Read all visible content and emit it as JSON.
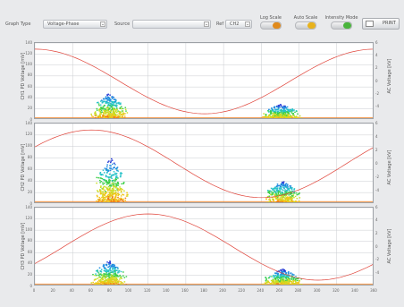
{
  "toolbar": {
    "graph_type_label": "Graph Type",
    "graph_type_value": "Voltage-Phase",
    "source_label": "Source",
    "source_value": "",
    "ref_label": "Ref",
    "ref_value": "CH2",
    "log_scale_label": "Log Scale",
    "auto_scale_label": "Auto Scale",
    "intensity_mode_label": "Intensity Mode",
    "print_label": "PRINT"
  },
  "colors": {
    "sine": "#e0443a",
    "grid": "#c9ccd0",
    "log_scale_knob": "#e08a1c",
    "auto_scale_knob": "#e8b21c",
    "intensity_knob": "#49b43c"
  },
  "chart_data": [
    {
      "type": "heatmap",
      "ylabel": "CH1 PD Voltage [mV]",
      "y2label": "AC Voltage [kV]",
      "xlabel": "",
      "x_ticks": [],
      "y_ticks": [
        "140",
        "120",
        "100",
        "80",
        "60",
        "40",
        "20",
        "0"
      ],
      "y2_ticks": [
        "6",
        "4",
        "2",
        "0",
        "-2",
        "-4"
      ],
      "xlim": [
        0,
        360
      ],
      "ylim": [
        0,
        140
      ],
      "clusters": [
        {
          "x_center": 78,
          "x_width": 22,
          "peak_mV": 48
        },
        {
          "x_center": 260,
          "x_width": 24,
          "peak_mV": 28
        }
      ],
      "sine_phase_offset_deg": 90
    },
    {
      "type": "heatmap",
      "ylabel": "CH2 PD Voltage [mV]",
      "y2label": "AC Voltage [kV]",
      "xlabel": "",
      "x_ticks": [],
      "y_ticks": [
        "140",
        "120",
        "100",
        "80",
        "60",
        "40",
        "20",
        "0"
      ],
      "y2_ticks": [
        "6",
        "4",
        "2",
        "0",
        "-2",
        "-4"
      ],
      "xlim": [
        0,
        360
      ],
      "ylim": [
        0,
        140
      ],
      "clusters": [
        {
          "x_center": 80,
          "x_width": 22,
          "peak_mV": 80
        },
        {
          "x_center": 262,
          "x_width": 24,
          "peak_mV": 40
        }
      ],
      "sine_phase_offset_deg": 30
    },
    {
      "type": "heatmap",
      "ylabel": "CH3 PD Voltage [mV]",
      "y2label": "AC Voltage [kV]",
      "xlabel": "",
      "x_ticks": [
        "0",
        "20",
        "40",
        "60",
        "80",
        "100",
        "120",
        "140",
        "160",
        "180",
        "200",
        "220",
        "240",
        "260",
        "280",
        "300",
        "320",
        "340",
        "360"
      ],
      "y_ticks": [
        "140",
        "120",
        "100",
        "80",
        "60",
        "40",
        "20",
        "0"
      ],
      "y2_ticks": [
        "6",
        "4",
        "2",
        "0",
        "-2",
        "-4"
      ],
      "xlim": [
        0,
        360
      ],
      "ylim": [
        0,
        140
      ],
      "clusters": [
        {
          "x_center": 78,
          "x_width": 22,
          "peak_mV": 45
        },
        {
          "x_center": 262,
          "x_width": 24,
          "peak_mV": 30
        }
      ],
      "sine_phase_offset_deg": -30
    }
  ]
}
